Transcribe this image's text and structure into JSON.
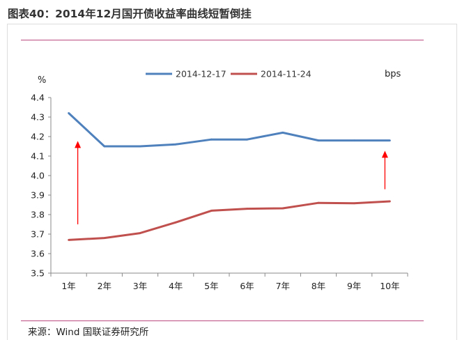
{
  "figure": {
    "title": "图表40：2014年12月国开债收益率曲线短暂倒挂",
    "source": "来源：Wind 国联证券研究所"
  },
  "chart_data": {
    "type": "line",
    "categories": [
      "1年",
      "2年",
      "3年",
      "4年",
      "5年",
      "6年",
      "7年",
      "8年",
      "9年",
      "10年"
    ],
    "series": [
      {
        "name": "2014-12-17",
        "color": "#4f81bd",
        "values": [
          4.32,
          4.15,
          4.15,
          4.16,
          4.185,
          4.185,
          4.22,
          4.18,
          4.18,
          4.18
        ]
      },
      {
        "name": "2014-11-24",
        "color": "#c0504d",
        "values": [
          3.67,
          3.68,
          3.705,
          3.76,
          3.82,
          3.83,
          3.832,
          3.86,
          3.858,
          3.868
        ]
      }
    ],
    "ylabel_left": "%",
    "ylabel_right": "bps",
    "ylim": [
      3.5,
      4.4
    ],
    "yticks": [
      "3.5",
      "3.6",
      "3.7",
      "3.8",
      "3.9",
      "4.0",
      "4.1",
      "4.2",
      "4.3",
      "4.4"
    ],
    "grid": false,
    "legend_position": "top",
    "annotations": [
      {
        "type": "arrow",
        "color": "#ff0000",
        "at_category": "1年",
        "from_y": 3.75,
        "to_y": 4.17
      },
      {
        "type": "arrow",
        "color": "#ff0000",
        "at_category": "10年",
        "from_y": 3.93,
        "to_y": 4.12
      }
    ]
  }
}
